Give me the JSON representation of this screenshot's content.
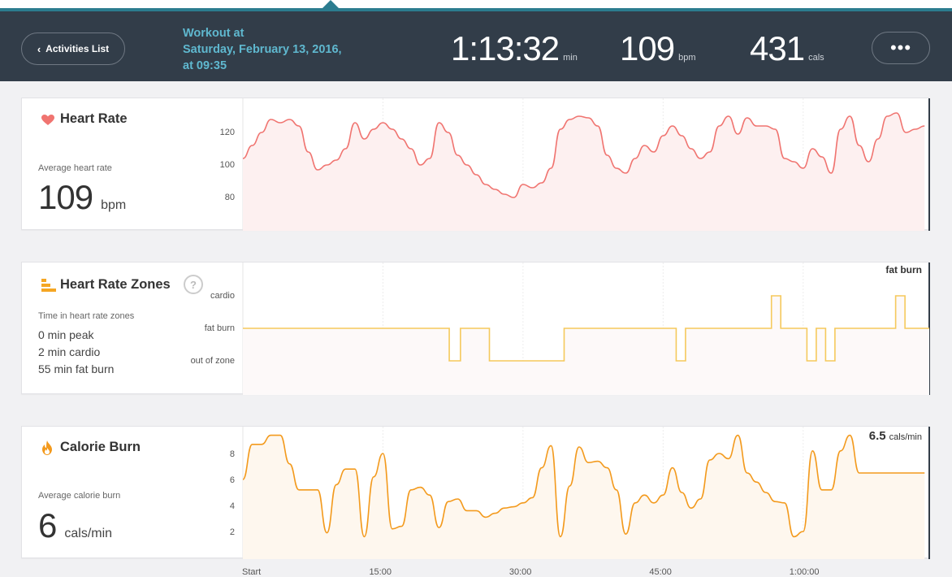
{
  "header": {
    "back_label": "Activities List",
    "title_line1": "Workout at",
    "title_line2": "Saturday, February 13, 2016,",
    "title_line3": "at 09:35",
    "duration": "1:13:32",
    "duration_unit": "min",
    "avg_bpm": "109",
    "bpm_unit": "bpm",
    "calories": "431",
    "cal_unit": "cals",
    "more_label": "•••"
  },
  "colors": {
    "header_bg": "#323d49",
    "accent": "#5fb8cf",
    "heart": "#f07470",
    "zone": "#f5c95c",
    "calorie": "#f39a1d"
  },
  "heart_rate": {
    "title": "Heart Rate",
    "icon": "heart-icon",
    "avg_label": "Average heart rate",
    "avg_value": "109",
    "avg_unit": "bpm",
    "y_ticks": [
      "120",
      "100",
      "80"
    ]
  },
  "zones": {
    "title": "Heart Rate Zones",
    "icon": "bar-chart-icon",
    "help": "?",
    "sub_label": "Time in heart rate zones",
    "items": [
      "0 min peak",
      "2 min cardio",
      "55 min fat burn"
    ],
    "y_ticks": [
      "cardio",
      "fat burn",
      "out of zone"
    ],
    "current": "fat burn"
  },
  "calories": {
    "title": "Calorie Burn",
    "icon": "flame-icon",
    "avg_label": "Average calorie burn",
    "avg_value": "6",
    "avg_unit": "cals/min",
    "y_ticks": [
      "8",
      "6",
      "4",
      "2"
    ],
    "current_value": "6.5",
    "current_unit": "cals/min"
  },
  "x_axis": [
    "Start",
    "15:00",
    "30:00",
    "45:00",
    "1:00:00"
  ],
  "chart_data": [
    {
      "type": "line",
      "title": "Heart Rate",
      "ylabel": "bpm",
      "ylim": [
        60,
        140
      ],
      "x": [
        0,
        1,
        2,
        3,
        4,
        5,
        6,
        7,
        8,
        9,
        10,
        11,
        12,
        13,
        14,
        15,
        16,
        17,
        18,
        19,
        20,
        21,
        22,
        23,
        24,
        25,
        26,
        27,
        28,
        29,
        30,
        31,
        32,
        33,
        34,
        35,
        36,
        37,
        38,
        39,
        40,
        41,
        42,
        43,
        44,
        45,
        46,
        47,
        48,
        49,
        50,
        51,
        52,
        53,
        54,
        55,
        56,
        57,
        58,
        59,
        60,
        61,
        62,
        63,
        64,
        65,
        66,
        67,
        68,
        69,
        70,
        71,
        72,
        73
      ],
      "values": [
        104,
        112,
        120,
        128,
        126,
        128,
        124,
        108,
        97,
        100,
        103,
        110,
        126,
        116,
        122,
        126,
        122,
        116,
        110,
        100,
        104,
        126,
        120,
        106,
        100,
        94,
        88,
        85,
        82,
        80,
        88,
        86,
        89,
        98,
        122,
        128,
        130,
        129,
        124,
        106,
        98,
        95,
        104,
        112,
        108,
        118,
        124,
        118,
        110,
        104,
        108,
        124,
        130,
        119,
        129,
        124,
        124,
        122,
        104,
        102,
        98,
        110,
        105,
        95,
        122,
        130,
        112,
        102,
        116,
        130,
        132,
        120,
        122,
        124
      ],
      "grid": true
    },
    {
      "type": "line",
      "title": "Heart Rate Zones",
      "categories": [
        "out of zone",
        "fat burn",
        "cardio"
      ],
      "x": [
        0,
        22.1,
        22.1,
        23.3,
        23.3,
        26.4,
        26.4,
        34.4,
        34.4,
        46.4,
        46.4,
        47.4,
        47.4,
        56.6,
        56.6,
        57.6,
        57.6,
        60.4,
        60.4,
        61.4,
        61.4,
        62.4,
        62.4,
        63.4,
        63.4,
        69.9,
        69.9,
        70.9,
        70.9,
        73.5
      ],
      "values": [
        1,
        1,
        0,
        0,
        1,
        1,
        0,
        0,
        1,
        1,
        0,
        0,
        1,
        1,
        2,
        2,
        1,
        1,
        0,
        0,
        1,
        1,
        0,
        0,
        1,
        1,
        2,
        2,
        1,
        1
      ]
    },
    {
      "type": "line",
      "title": "Calorie Burn",
      "ylabel": "cals/min",
      "ylim": [
        0,
        10
      ],
      "x": [
        0,
        1,
        2,
        3,
        4,
        5,
        6,
        7,
        8,
        9,
        10,
        11,
        12,
        13,
        14,
        15,
        16,
        17,
        18,
        19,
        20,
        21,
        22,
        23,
        24,
        25,
        26,
        27,
        28,
        29,
        30,
        31,
        32,
        33,
        34,
        35,
        36,
        37,
        38,
        39,
        40,
        41,
        42,
        43,
        44,
        45,
        46,
        47,
        48,
        49,
        50,
        51,
        52,
        53,
        54,
        55,
        56,
        57,
        58,
        59,
        60,
        61,
        62,
        63,
        64,
        65,
        66,
        67,
        68,
        69,
        70,
        71,
        72,
        73
      ],
      "values": [
        6,
        8.7,
        8.7,
        9.4,
        9.4,
        7.2,
        5.2,
        5.2,
        5.2,
        1.9,
        5.6,
        6.8,
        6.8,
        1.6,
        6.2,
        8,
        2.2,
        2.4,
        5.2,
        5.4,
        4.8,
        2.3,
        4.3,
        4.5,
        3.6,
        3.6,
        3.1,
        3.4,
        3.8,
        3.9,
        4.2,
        4.6,
        6.9,
        8.6,
        1.6,
        5.5,
        8.5,
        7.3,
        7.4,
        6.9,
        5.2,
        1.8,
        4.2,
        4.8,
        4.2,
        4.8,
        6.9,
        5,
        3.8,
        4.5,
        7.5,
        8,
        7.6,
        9.4,
        6.5,
        5.8,
        5,
        4.3,
        4.2,
        1.6,
        2,
        8.2,
        5.2,
        5.2,
        8.2,
        9.4,
        6.5,
        6.5,
        6.5,
        6.5,
        6.5,
        6.5,
        6.5,
        6.5
      ],
      "grid": true
    }
  ]
}
